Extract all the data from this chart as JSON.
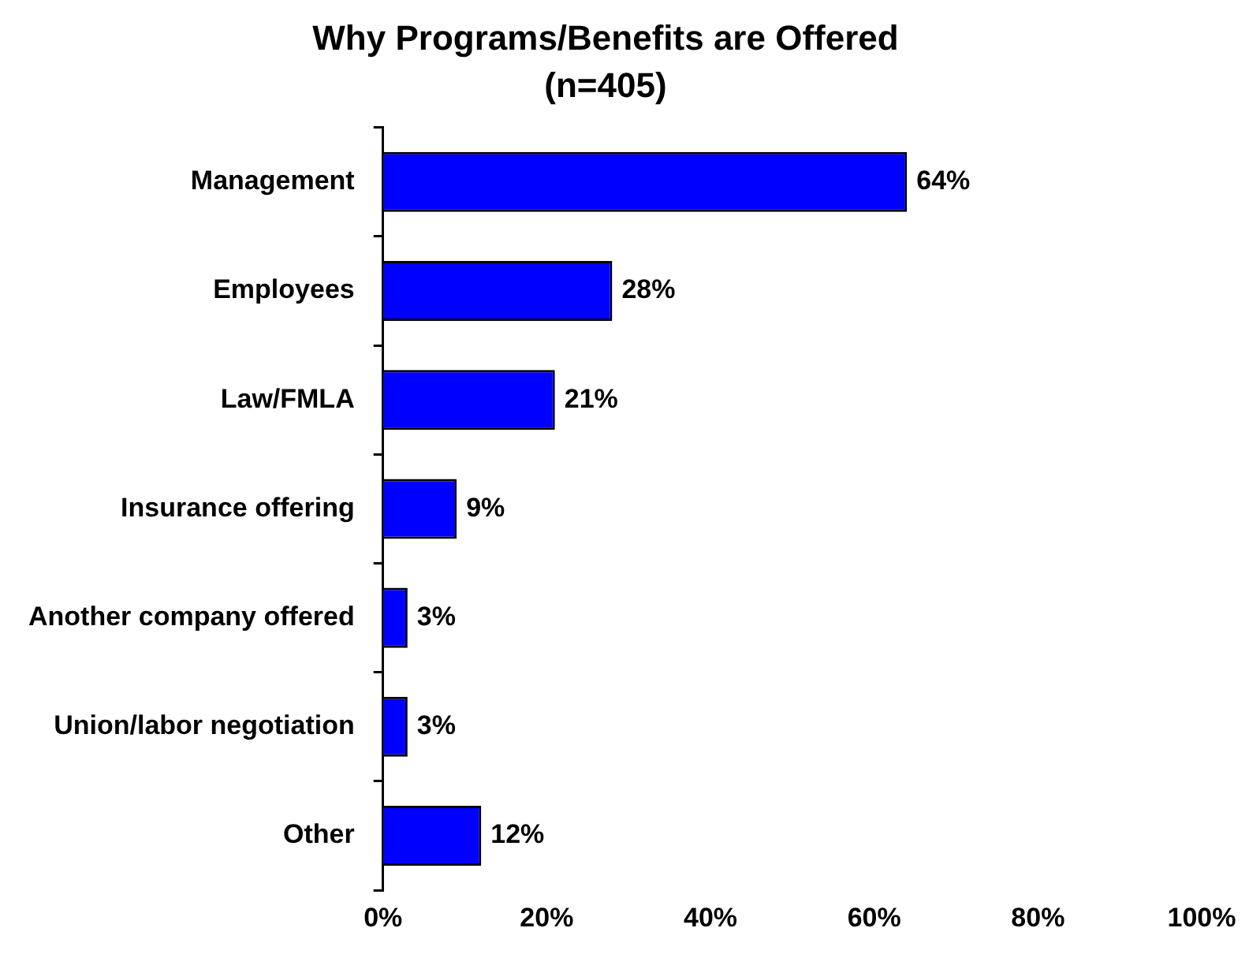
{
  "chart_data": {
    "type": "bar",
    "orientation": "horizontal",
    "title": "Why Programs/Benefits are Offered",
    "subtitle": "(n=405)",
    "categories": [
      "Management",
      "Employees",
      "Law/FMLA",
      "Insurance offering",
      "Another company offered",
      "Union/labor negotiation",
      "Other"
    ],
    "values": [
      64,
      28,
      21,
      9,
      3,
      3,
      12
    ],
    "value_labels": [
      "64%",
      "28%",
      "21%",
      "9%",
      "3%",
      "3%",
      "12%"
    ],
    "color": "#0000ff",
    "xlim": [
      0,
      100
    ],
    "xticks": [
      {
        "value": 0,
        "label": "0%"
      },
      {
        "value": 20,
        "label": "20%"
      },
      {
        "value": 40,
        "label": "40%"
      },
      {
        "value": 60,
        "label": "60%"
      },
      {
        "value": 80,
        "label": "80%"
      },
      {
        "value": 100,
        "label": "100%"
      }
    ],
    "grid": false,
    "legend": false
  }
}
